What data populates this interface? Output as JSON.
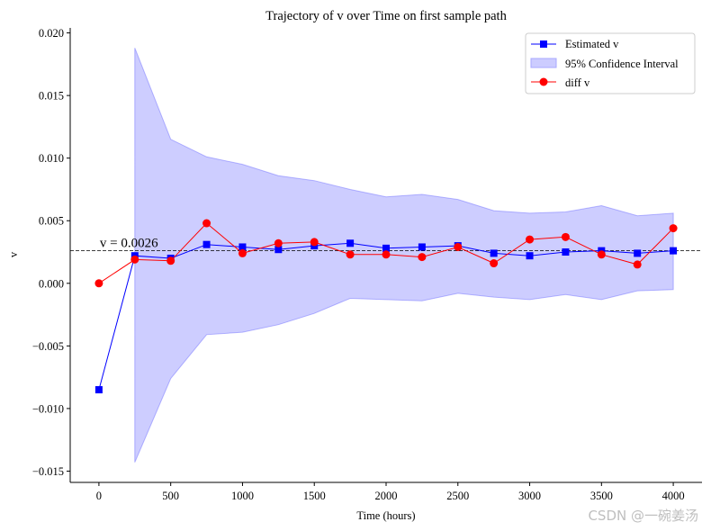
{
  "chart_data": {
    "type": "line",
    "title": "Trajectory of v over Time on first sample path",
    "xlabel": "Time (hours)",
    "ylabel": "v",
    "xlim": [
      -200,
      4200
    ],
    "ylim": [
      -0.0159,
      0.0204
    ],
    "xticks": [
      0,
      500,
      1000,
      1500,
      2000,
      2500,
      3000,
      3500,
      4000
    ],
    "xtick_labels": [
      "0",
      "500",
      "1000",
      "1500",
      "2000",
      "2500",
      "3000",
      "3500",
      "4000"
    ],
    "yticks": [
      0.02,
      0.015,
      0.01,
      0.005,
      0.0,
      -0.005,
      -0.01,
      -0.015
    ],
    "ytick_labels": [
      "0.020",
      "0.015",
      "0.010",
      "0.005",
      "0.000",
      "−0.005",
      "−0.010",
      "−0.015"
    ],
    "x": [
      0,
      250,
      500,
      750,
      1000,
      1250,
      1500,
      1750,
      2000,
      2250,
      2500,
      2750,
      3000,
      3250,
      3500,
      3750,
      4000
    ],
    "series": [
      {
        "name": "Estimated v",
        "color": "#0000ff",
        "marker": "square",
        "values": [
          -0.0085,
          0.0022,
          0.002,
          0.0031,
          0.0029,
          0.0027,
          0.003,
          0.0032,
          0.0028,
          0.0029,
          0.003,
          0.0024,
          0.0022,
          0.0025,
          0.0026,
          0.0024,
          0.0026
        ]
      },
      {
        "name": "diff v",
        "color": "#ff0000",
        "marker": "circle",
        "values": [
          0.0,
          0.0019,
          0.0018,
          0.0048,
          0.0024,
          0.0032,
          0.0033,
          0.0023,
          0.0023,
          0.0021,
          0.0029,
          0.0016,
          0.0035,
          0.0037,
          0.0023,
          0.0015,
          0.0044
        ]
      }
    ],
    "confidence_interval": {
      "name": "95% Confidence Interval",
      "color": "#6666ff",
      "x": [
        250,
        500,
        750,
        1000,
        1250,
        1500,
        1750,
        2000,
        2250,
        2500,
        2750,
        3000,
        3250,
        3500,
        3750,
        4000
      ],
      "upper": [
        0.0188,
        0.0115,
        0.0101,
        0.0095,
        0.0086,
        0.0082,
        0.0075,
        0.0069,
        0.0071,
        0.0067,
        0.0058,
        0.0056,
        0.0057,
        0.0062,
        0.0054,
        0.0056
      ],
      "lower": [
        -0.0143,
        -0.0076,
        -0.0041,
        -0.0039,
        -0.0033,
        -0.0024,
        -0.0012,
        -0.0013,
        -0.0014,
        -0.0008,
        -0.0011,
        -0.0013,
        -0.0009,
        -0.0013,
        -0.0006,
        -0.0005
      ]
    },
    "reference_line": {
      "value": 0.0026,
      "label": "v = 0.0026",
      "style": "dashed",
      "color": "#000000"
    },
    "legend": {
      "position": "top-right",
      "entries": [
        "Estimated v",
        "95% Confidence Interval",
        "diff v"
      ]
    },
    "grid": false
  },
  "watermark": "CSDN @一碗姜汤"
}
